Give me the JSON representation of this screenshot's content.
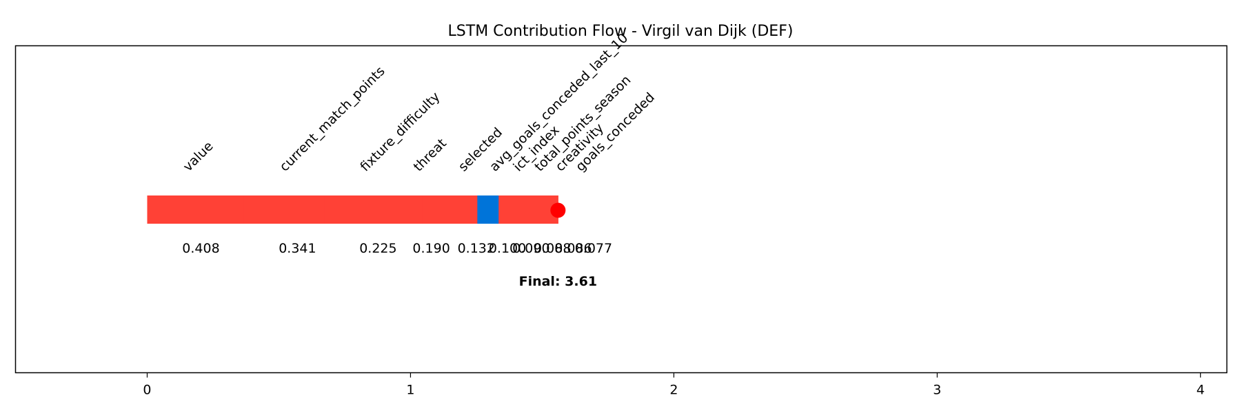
{
  "chart_data": {
    "type": "bar",
    "title": "LSTM Contribution Flow - Virgil van Dijk (DEF)",
    "xlabel": "",
    "ylabel": "",
    "xlim": [
      -0.5,
      4.1
    ],
    "xticks": [
      0,
      1,
      2,
      3,
      4
    ],
    "xtick_labels": [
      "0",
      "1",
      "2",
      "3",
      "4"
    ],
    "grid": false,
    "orientation": "horizontal-waterfall",
    "colors": {
      "positive": "#ff4136",
      "negative": "#0074d9",
      "final_marker": "#ff0000"
    },
    "segments": [
      {
        "feature": "value",
        "value": 0.408,
        "value_label": "0.408",
        "sign": "positive"
      },
      {
        "feature": "current_match_points",
        "value": 0.341,
        "value_label": "0.341",
        "sign": "positive"
      },
      {
        "feature": "fixture_difficulty",
        "value": 0.225,
        "value_label": "0.225",
        "sign": "positive"
      },
      {
        "feature": "threat",
        "value": 0.19,
        "value_label": "0.190",
        "sign": "positive"
      },
      {
        "feature": "selected",
        "value": 0.132,
        "value_label": "0.132",
        "sign": "positive"
      },
      {
        "feature": "avg_goals_conceded_last_10",
        "value": 0.1,
        "value_label": "0.100",
        "sign": "positive"
      },
      {
        "feature": "ict_index",
        "value": 0.09,
        "value_label": "0.090",
        "sign": "negative"
      },
      {
        "feature": "total_points_season",
        "value": 0.088,
        "value_label": "0.088",
        "sign": "positive"
      },
      {
        "feature": "creativity",
        "value": 0.086,
        "value_label": "0.086",
        "sign": "positive"
      },
      {
        "feature": "goals_conceded",
        "value": 0.077,
        "value_label": "0.077",
        "sign": "positive"
      }
    ],
    "bar_start": 0,
    "bar_end": 1.56,
    "final_label": "Final: 3.61"
  }
}
